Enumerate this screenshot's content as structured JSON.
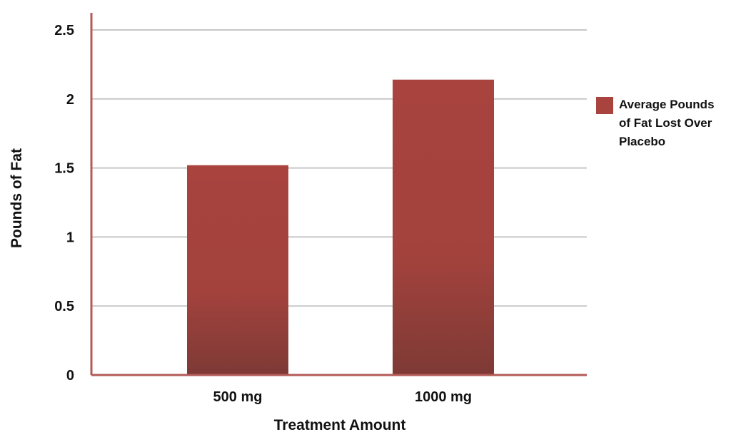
{
  "chart_data": {
    "type": "bar",
    "categories": [
      "500 mg",
      "1000 mg"
    ],
    "series": [
      {
        "name": "Average Pounds of Fat Lost Over Placebo",
        "values": [
          1.52,
          2.14
        ],
        "color": "#a8433e"
      }
    ],
    "xlabel": "Treatment Amount",
    "ylabel": "Pounds of Fat",
    "ylim": [
      0,
      2.5
    ],
    "yticks": [
      "0",
      "0.5",
      "1",
      "1.5",
      "2",
      "2.5"
    ],
    "grid": true,
    "legend_position": "right",
    "legend_lines": [
      "Average Pounds",
      "of Fat Lost Over",
      "Placebo"
    ],
    "colors": {
      "bar_top": "#a8433e",
      "bar_bottom": "#7e3a35",
      "axis": "#b35b57",
      "grid": "#c7c7c7"
    }
  }
}
